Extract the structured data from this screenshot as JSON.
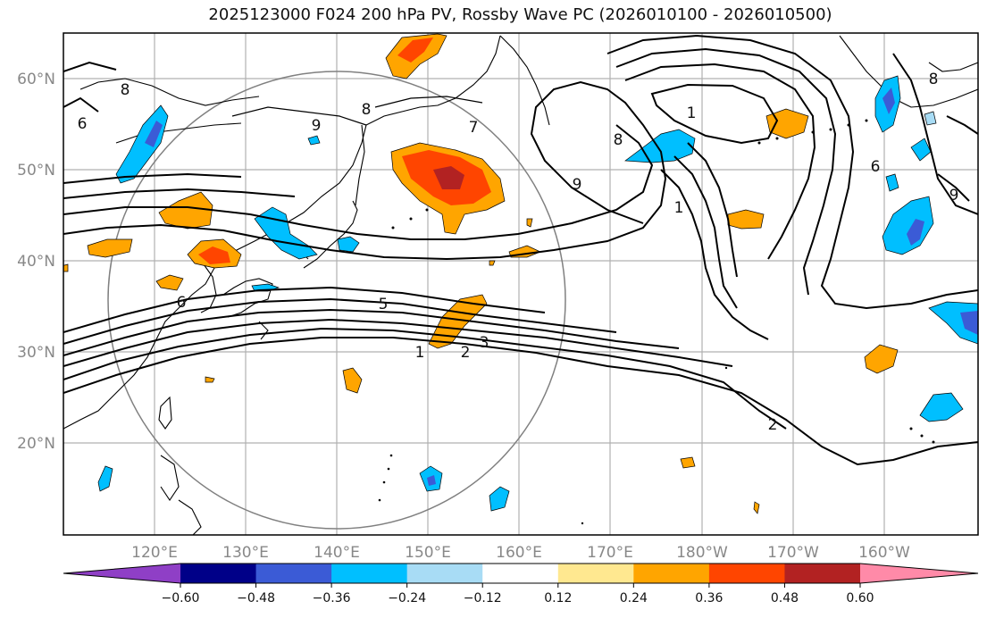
{
  "title": "2025123000 F024 200 hPa PV, Rossby Wave PC (2026010100 - 2026010500)",
  "lat_labels": [
    "60°N",
    "50°N",
    "40°N",
    "30°N",
    "20°N"
  ],
  "lon_labels": [
    "120°E",
    "130°E",
    "140°E",
    "150°E",
    "160°E",
    "170°E",
    "180°W",
    "170°W",
    "160°W"
  ],
  "contour_labels": [
    "6",
    "8",
    "9",
    "8",
    "7",
    "1",
    "9",
    "8",
    "6",
    "6",
    "5",
    "1",
    "2",
    "3",
    "2",
    "1",
    "8",
    "9"
  ],
  "colorbar": {
    "ticks": [
      "−0.60",
      "−0.48",
      "−0.36",
      "−0.24",
      "−0.12",
      "0.12",
      "0.24",
      "0.36",
      "0.48",
      "0.60"
    ],
    "colors": [
      "#8f3fc6",
      "#000088",
      "#3b5bd6",
      "#00bfff",
      "#a8dcf5",
      "#ffffff",
      "#ffe890",
      "#ffa500",
      "#ff4500",
      "#b22222",
      "#ff8aa8"
    ]
  }
}
